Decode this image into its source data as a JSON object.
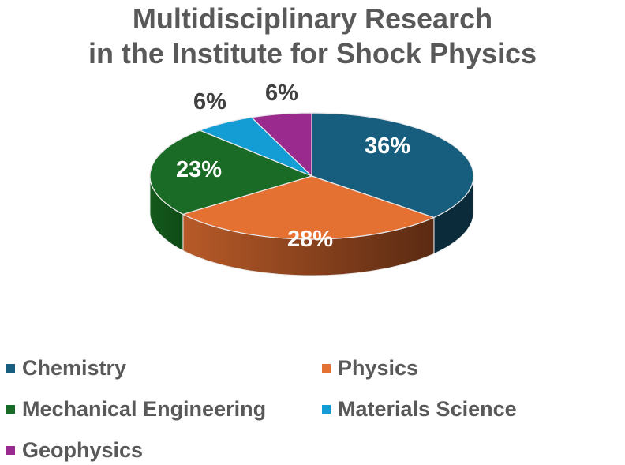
{
  "title_line1": "Multidisciplinary Research",
  "title_line2": "in the Institute for Shock Physics",
  "chart_data": {
    "type": "pie",
    "style": "3d",
    "title": "Multidisciplinary Research in the Institute for Shock Physics",
    "categories": [
      "Chemistry",
      "Physics",
      "Mechanical Engineering",
      "Materials Science",
      "Geophysics"
    ],
    "values": [
      36,
      28,
      23,
      6,
      6
    ],
    "labels": [
      "36%",
      "28%",
      "23%",
      "6%",
      "6%"
    ],
    "colors": [
      "#175e7e",
      "#e47032",
      "#1a6b26",
      "#139dd4",
      "#9a2a8e"
    ],
    "legend_position": "bottom"
  },
  "legend": [
    {
      "label": "Chemistry",
      "color": "#175e7e"
    },
    {
      "label": "Physics",
      "color": "#e47032"
    },
    {
      "label": "Mechanical Engineering",
      "color": "#1a6b26"
    },
    {
      "label": "Materials Science",
      "color": "#139dd4"
    },
    {
      "label": "Geophysics",
      "color": "#9a2a8e"
    }
  ]
}
